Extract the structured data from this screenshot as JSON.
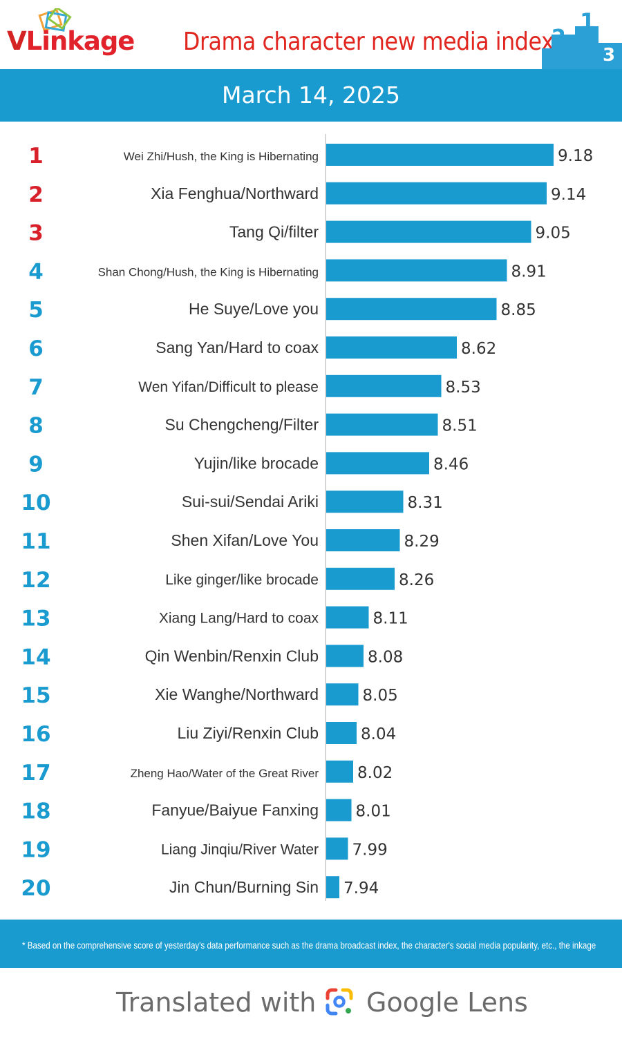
{
  "header": {
    "logo_text_v": "V",
    "logo_text_rest": "Linkage",
    "title": "Drama character new media index",
    "podium_labels": [
      "2",
      "1",
      "3"
    ]
  },
  "band": {
    "date": "March 14, 2025"
  },
  "colors": {
    "brand_blue": "#1a9bd0",
    "bar": "#1a9bd0",
    "rank_top3": "#d8202a",
    "rank_other": "#1a9bd0",
    "title_red": "#e0261f"
  },
  "chart_data": {
    "type": "bar",
    "orientation": "horizontal",
    "ranks": [
      "1",
      "2",
      "3",
      "4",
      "5",
      "6",
      "7",
      "8",
      "9",
      "10",
      "11",
      "12",
      "13",
      "14",
      "15",
      "16",
      "17",
      "18",
      "19",
      "20"
    ],
    "categories": [
      "Wei Zhi/Hush, the King is Hibernating",
      "Xia Fenghua/Northward",
      "Tang Qi/filter",
      "Shan Chong/Hush, the King is Hibernating",
      "He Suye/Love you",
      "Sang Yan/Hard to coax",
      "Wen Yifan/Difficult to please",
      "Su Chengcheng/Filter",
      "Yujin/like brocade",
      "Sui-sui/Sendai Ariki",
      "Shen Xifan/Love You",
      "Like ginger/like brocade",
      "Xiang Lang/Hard to coax",
      "Qin Wenbin/Renxin Club",
      "Xie Wanghe/Northward",
      "Liu Ziyi/Renxin Club",
      "Zheng Hao/Water of the Great River",
      "Fanyue/Baiyue Fanxing",
      "Liang Jinqiu/River Water",
      "Jin Chun/Burning Sin"
    ],
    "values": [
      9.18,
      9.14,
      9.05,
      8.91,
      8.85,
      8.62,
      8.53,
      8.51,
      8.46,
      8.31,
      8.29,
      8.26,
      8.11,
      8.08,
      8.05,
      8.04,
      8.02,
      8.01,
      7.99,
      7.94
    ],
    "value_labels": [
      "9.18",
      "9.14",
      "9.05",
      "8.91",
      "8.85",
      "8.62",
      "8.53",
      "8.51",
      "8.46",
      "8.31",
      "8.29",
      "8.26",
      "8.11",
      "8.08",
      "8.05",
      "8.04",
      "8.02",
      "8.01",
      "7.99",
      "7.94"
    ],
    "xlim": [
      7.86,
      9.2
    ]
  },
  "footer": {
    "note": "* Based on the comprehensive score of yesterday's data performance such as the drama broadcast index, the character's social media popularity, etc., the inkage"
  },
  "lens": {
    "prefix": "Translated with",
    "brand": "Google Lens"
  }
}
